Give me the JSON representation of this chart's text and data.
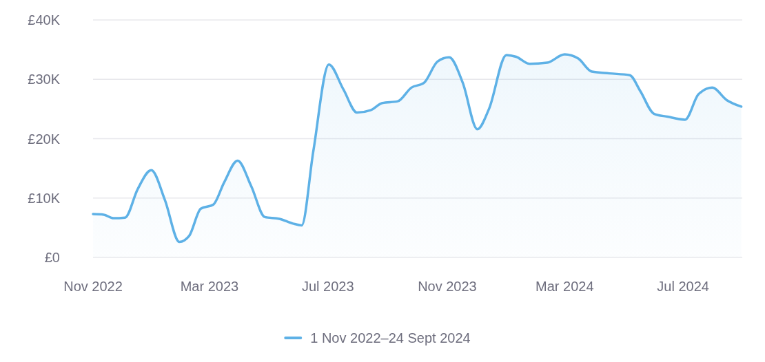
{
  "chart_data": {
    "type": "area",
    "x": [
      "2022-11-01",
      "2022-11-12",
      "2022-11-22",
      "2022-12-04",
      "2022-12-17",
      "2022-12-31",
      "2023-01-14",
      "2023-01-29",
      "2023-02-08",
      "2023-02-20",
      "2023-03-05",
      "2023-03-16",
      "2023-03-30",
      "2023-04-13",
      "2023-04-27",
      "2023-05-12",
      "2023-05-26",
      "2023-06-04",
      "2023-06-16",
      "2023-07-02",
      "2023-07-17",
      "2023-07-31",
      "2023-08-14",
      "2023-08-26",
      "2023-09-11",
      "2023-09-25",
      "2023-10-08",
      "2023-10-22",
      "2023-11-03",
      "2023-11-17",
      "2023-12-02",
      "2023-12-14",
      "2024-01-01",
      "2024-01-11",
      "2024-01-25",
      "2024-02-12",
      "2024-03-01",
      "2024-03-15",
      "2024-03-29",
      "2024-04-16",
      "2024-05-07",
      "2024-05-18",
      "2024-06-01",
      "2024-06-15",
      "2024-07-03",
      "2024-07-17",
      "2024-07-31",
      "2024-08-15",
      "2024-08-30"
    ],
    "series": [
      {
        "name": "1 Nov 2022–24 Sept 2024",
        "color": "#5eb1e6",
        "values": [
          7300,
          7200,
          6600,
          6700,
          11500,
          14700,
          9700,
          2600,
          3600,
          8200,
          8900,
          12600,
          16300,
          12000,
          6800,
          6500,
          5700,
          5400,
          17900,
          32500,
          28300,
          24400,
          24800,
          26000,
          26300,
          28600,
          29400,
          33000,
          33700,
          29400,
          21600,
          25000,
          34100,
          33800,
          32600,
          32800,
          34200,
          33500,
          31300,
          31000,
          30700,
          28000,
          24200,
          23700,
          23200,
          27500,
          28600,
          26500,
          25400
        ]
      }
    ],
    "xlim": [
      "2022-11-01",
      "2024-08-31"
    ],
    "xticks": [
      {
        "value": "2022-11-01",
        "label": "Nov 2022"
      },
      {
        "value": "2023-03-01",
        "label": "Mar 2023"
      },
      {
        "value": "2023-07-01",
        "label": "Jul 2023"
      },
      {
        "value": "2023-11-01",
        "label": "Nov 2023"
      },
      {
        "value": "2024-03-01",
        "label": "Mar 2024"
      },
      {
        "value": "2024-07-01",
        "label": "Jul 2024"
      }
    ],
    "ylim": [
      0,
      40000
    ],
    "yticks": [
      {
        "value": 0,
        "label": "£0"
      },
      {
        "value": 10000,
        "label": "£10K"
      },
      {
        "value": 20000,
        "label": "£20K"
      },
      {
        "value": 30000,
        "label": "£30K"
      },
      {
        "value": 40000,
        "label": "£40K"
      }
    ],
    "grid": "y",
    "legend": "bottom",
    "marker": "none",
    "line_style": "solid"
  }
}
